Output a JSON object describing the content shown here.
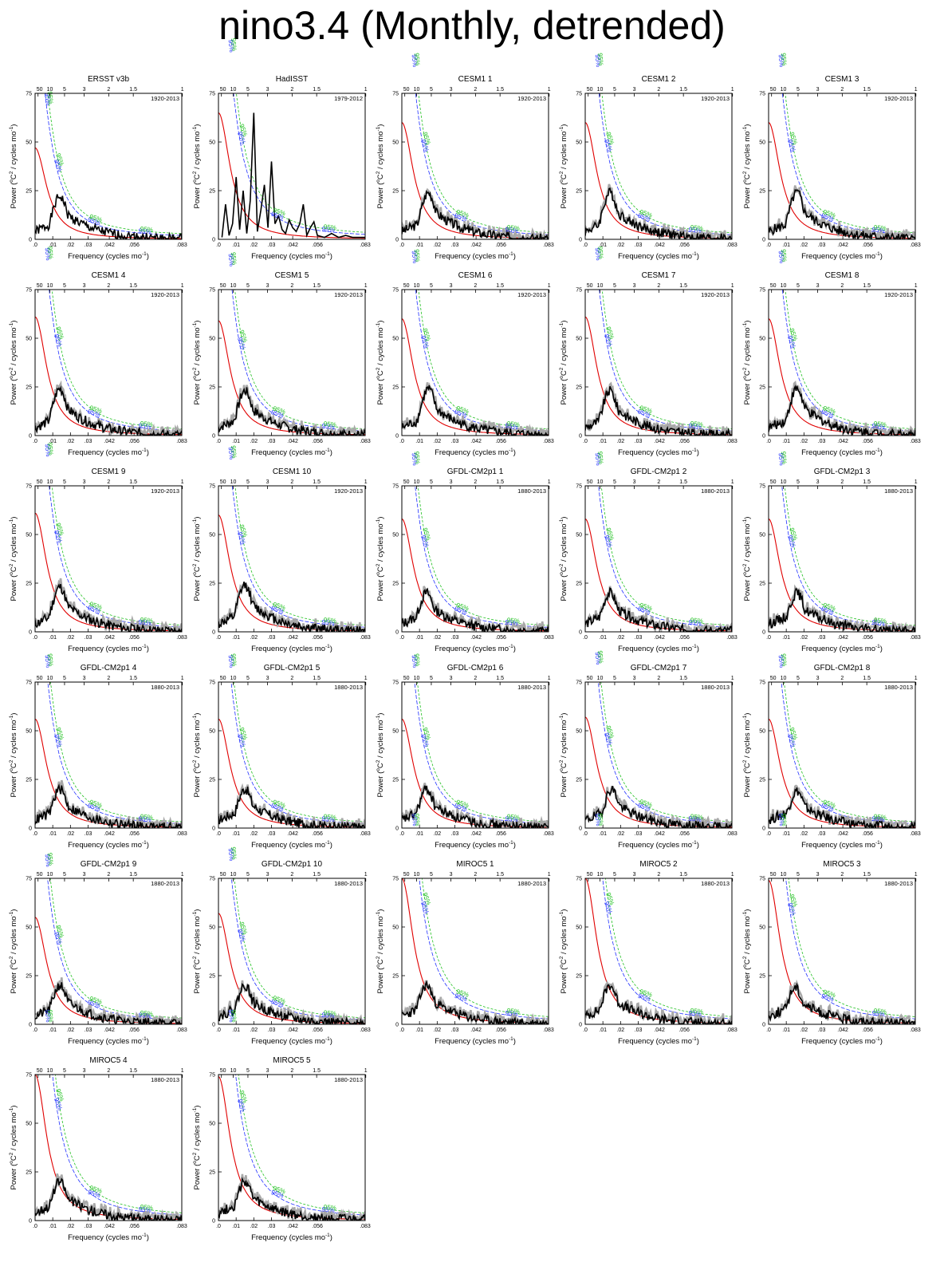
{
  "title": "nino3.4 (Monthly, detrended)",
  "colors": {
    "spectrum": "#000000",
    "model_spread": "#a8a8a8",
    "red_noise": "#e00000",
    "ci95": "#2030ff",
    "ci99": "#20c020"
  },
  "common": {
    "xlabel": "Frequency (cycles mo",
    "xlabel_sup": "-1",
    "xlabel_end": ")",
    "ylabel": "Power (",
    "ylabel_deg": "o",
    "ylabel_c": "C",
    "ylabel_sup": "2",
    "ylabel_end": " / cycles mo",
    "ylabel_sup2": "-1",
    "ylabel_close": ")",
    "ci_label": "95%",
    "xticks": [
      ".0",
      ".01",
      ".02",
      ".03",
      ".042",
      ".056",
      ".083"
    ],
    "xticks_at": [
      0,
      0.01,
      0.02,
      0.03,
      0.042,
      0.056,
      0.083
    ],
    "yticks": [
      "0",
      "25",
      "50",
      "75"
    ],
    "period_ticks": [
      "50",
      "10",
      "5",
      "3",
      "2",
      "1.5",
      "1"
    ],
    "period_ticks_years": [
      50,
      10,
      5,
      3,
      2,
      1.5,
      1
    ]
  },
  "chart_data": [
    {
      "type": "line",
      "title": "ERSST v3b",
      "period": "1920-2013",
      "xlim": [
        0,
        0.083
      ],
      "ylim": [
        0,
        75
      ],
      "rn0": 47,
      "peak": 22,
      "peakx": 0.014,
      "seed": 1,
      "spread": false
    },
    {
      "type": "line",
      "title": "HadISST",
      "period": "1979-2012",
      "xlim": [
        0,
        0.083
      ],
      "ylim": [
        0,
        75
      ],
      "rn0": 65,
      "peak": 32,
      "peakx": 0.02,
      "seed": 2,
      "spread": false,
      "spiky": true
    },
    {
      "type": "line",
      "title": "CESM1 1",
      "period": "1920-2013",
      "xlim": [
        0,
        0.083
      ],
      "ylim": [
        0,
        75
      ],
      "rn0": 60,
      "peak": 24,
      "peakx": 0.015,
      "seed": 3,
      "spread": true
    },
    {
      "type": "line",
      "title": "CESM1 2",
      "period": "1920-2013",
      "xlim": [
        0,
        0.083
      ],
      "ylim": [
        0,
        75
      ],
      "rn0": 60,
      "peak": 24,
      "peakx": 0.014,
      "seed": 4,
      "spread": true
    },
    {
      "type": "line",
      "title": "CESM1 3",
      "period": "1920-2013",
      "xlim": [
        0,
        0.083
      ],
      "ylim": [
        0,
        75
      ],
      "rn0": 60,
      "peak": 24,
      "peakx": 0.016,
      "seed": 5,
      "spread": true
    },
    {
      "type": "line",
      "title": "CESM1 4",
      "period": "1920-2013",
      "xlim": [
        0,
        0.083
      ],
      "ylim": [
        0,
        75
      ],
      "rn0": 61,
      "peak": 24,
      "peakx": 0.014,
      "seed": 6,
      "spread": true
    },
    {
      "type": "line",
      "title": "CESM1 5",
      "period": "1920-2013",
      "xlim": [
        0,
        0.083
      ],
      "ylim": [
        0,
        75
      ],
      "rn0": 59,
      "peak": 23,
      "peakx": 0.015,
      "seed": 7,
      "spread": true
    },
    {
      "type": "line",
      "title": "CESM1 6",
      "period": "1920-2013",
      "xlim": [
        0,
        0.083
      ],
      "ylim": [
        0,
        75
      ],
      "rn0": 60,
      "peak": 24,
      "peakx": 0.015,
      "seed": 8,
      "spread": true
    },
    {
      "type": "line",
      "title": "CESM1 7",
      "period": "1920-2013",
      "xlim": [
        0,
        0.083
      ],
      "ylim": [
        0,
        75
      ],
      "rn0": 61,
      "peak": 23,
      "peakx": 0.014,
      "seed": 9,
      "spread": true
    },
    {
      "type": "line",
      "title": "CESM1 8",
      "period": "1920-2013",
      "xlim": [
        0,
        0.083
      ],
      "ylim": [
        0,
        75
      ],
      "rn0": 60,
      "peak": 24,
      "peakx": 0.016,
      "seed": 10,
      "spread": true
    },
    {
      "type": "line",
      "title": "CESM1 9",
      "period": "1920-2013",
      "xlim": [
        0,
        0.083
      ],
      "ylim": [
        0,
        75
      ],
      "rn0": 61,
      "peak": 23,
      "peakx": 0.014,
      "seed": 11,
      "spread": true
    },
    {
      "type": "line",
      "title": "CESM1 10",
      "period": "1920-2013",
      "xlim": [
        0,
        0.083
      ],
      "ylim": [
        0,
        75
      ],
      "rn0": 60,
      "peak": 24,
      "peakx": 0.015,
      "seed": 12,
      "spread": true
    },
    {
      "type": "line",
      "title": "GFDL-CM2p1 1",
      "period": "1880-2013",
      "xlim": [
        0,
        0.083
      ],
      "ylim": [
        0,
        75
      ],
      "rn0": 58,
      "peak": 20,
      "peakx": 0.014,
      "seed": 13,
      "spread": true
    },
    {
      "type": "line",
      "title": "GFDL-CM2p1 2",
      "period": "1880-2013",
      "xlim": [
        0,
        0.083
      ],
      "ylim": [
        0,
        75
      ],
      "rn0": 58,
      "peak": 20,
      "peakx": 0.014,
      "seed": 14,
      "spread": true
    },
    {
      "type": "line",
      "title": "GFDL-CM2p1 3",
      "period": "1880-2013",
      "xlim": [
        0,
        0.083
      ],
      "ylim": [
        0,
        75
      ],
      "rn0": 58,
      "peak": 20,
      "peakx": 0.016,
      "seed": 15,
      "spread": true
    },
    {
      "type": "line",
      "title": "GFDL-CM2p1 4",
      "period": "1880-2013",
      "xlim": [
        0,
        0.083
      ],
      "ylim": [
        0,
        75
      ],
      "rn0": 56,
      "peak": 20,
      "peakx": 0.014,
      "seed": 16,
      "spread": true
    },
    {
      "type": "line",
      "title": "GFDL-CM2p1 5",
      "period": "1880-2013",
      "xlim": [
        0,
        0.083
      ],
      "ylim": [
        0,
        75
      ],
      "rn0": 56,
      "peak": 20,
      "peakx": 0.015,
      "seed": 17,
      "spread": true
    },
    {
      "type": "line",
      "title": "GFDL-CM2p1 6",
      "period": "1880-2013",
      "xlim": [
        0,
        0.083
      ],
      "ylim": [
        0,
        75
      ],
      "rn0": 56,
      "peak": 20,
      "peakx": 0.014,
      "seed": 18,
      "spread": true
    },
    {
      "type": "line",
      "title": "GFDL-CM2p1 7",
      "period": "1880-2013",
      "xlim": [
        0,
        0.083
      ],
      "ylim": [
        0,
        75
      ],
      "rn0": 57,
      "peak": 20,
      "peakx": 0.015,
      "seed": 19,
      "spread": true
    },
    {
      "type": "line",
      "title": "GFDL-CM2p1 8",
      "period": "1880-2013",
      "xlim": [
        0,
        0.083
      ],
      "ylim": [
        0,
        75
      ],
      "rn0": 56,
      "peak": 19,
      "peakx": 0.016,
      "seed": 20,
      "spread": true
    },
    {
      "type": "line",
      "title": "GFDL-CM2p1 9",
      "period": "1880-2013",
      "xlim": [
        0,
        0.083
      ],
      "ylim": [
        0,
        75
      ],
      "rn0": 55,
      "peak": 20,
      "peakx": 0.014,
      "seed": 21,
      "spread": true
    },
    {
      "type": "line",
      "title": "GFDL-CM2p1 10",
      "period": "1880-2013",
      "xlim": [
        0,
        0.083
      ],
      "ylim": [
        0,
        75
      ],
      "rn0": 57,
      "peak": 20,
      "peakx": 0.015,
      "seed": 22,
      "spread": true
    },
    {
      "type": "line",
      "title": "MIROC5 1",
      "period": "1880-2013",
      "xlim": [
        0,
        0.083
      ],
      "ylim": [
        0,
        75
      ],
      "rn0": 75,
      "peak": 20,
      "peakx": 0.014,
      "seed": 23,
      "spread": true
    },
    {
      "type": "line",
      "title": "MIROC5 2",
      "period": "1880-2013",
      "xlim": [
        0,
        0.083
      ],
      "ylim": [
        0,
        75
      ],
      "rn0": 75,
      "peak": 20,
      "peakx": 0.014,
      "seed": 24,
      "spread": true
    },
    {
      "type": "line",
      "title": "MIROC5 3",
      "period": "1880-2013",
      "xlim": [
        0,
        0.083
      ],
      "ylim": [
        0,
        75
      ],
      "rn0": 74,
      "peak": 19,
      "peakx": 0.015,
      "seed": 25,
      "spread": true
    },
    {
      "type": "line",
      "title": "MIROC5 4",
      "period": "1880-2013",
      "xlim": [
        0,
        0.083
      ],
      "ylim": [
        0,
        75
      ],
      "rn0": 75,
      "peak": 20,
      "peakx": 0.014,
      "seed": 26,
      "spread": true
    },
    {
      "type": "line",
      "title": "MIROC5 5",
      "period": "1880-2013",
      "xlim": [
        0,
        0.083
      ],
      "ylim": [
        0,
        75
      ],
      "rn0": 74,
      "peak": 20,
      "peakx": 0.015,
      "seed": 27,
      "spread": true
    }
  ]
}
